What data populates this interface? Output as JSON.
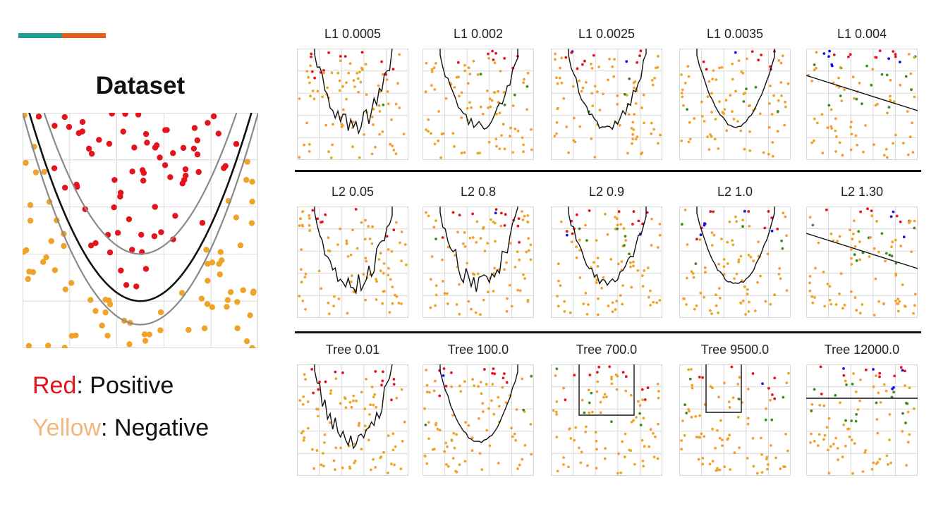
{
  "colors": {
    "accent_teal": "#1f9e8f",
    "accent_orange": "#e0601c",
    "positive": "#e3141c",
    "negative": "#f0a32a",
    "negative_label": "#f2b77a",
    "misclass_blue": "#1414e6",
    "misclass_green": "#3c8c1e",
    "boundary": "#111111",
    "margin": "#8a8a8a",
    "grid": "#d9d9d9"
  },
  "dataset": {
    "title": "Dataset",
    "legend": [
      {
        "color_word": "Red",
        "separator": ":",
        "meaning": " Positive"
      },
      {
        "color_word": "Yellow",
        "separator": ":",
        "meaning": " Negative"
      }
    ]
  },
  "chart_data": [
    {
      "type": "scatter",
      "title": "Dataset",
      "description": "Binary classes separated by a parabola",
      "legend": [
        "Red: Positive",
        "Yellow: Negative"
      ],
      "xlim": [
        -3,
        3
      ],
      "ylim": [
        0,
        10
      ],
      "boundary": {
        "kind": "parabola",
        "vertex_y": 2.0,
        "curvature": 1.0
      },
      "margins": [
        {
          "vertex_y": 4.0
        },
        {
          "vertex_y": 1.0
        }
      ]
    },
    {
      "type": "scatter",
      "grid_rows": [
        {
          "name": "L1",
          "panels": [
            {
              "title": "L1 0.0005",
              "boundary": "jagged",
              "misclassified": 0.02
            },
            {
              "title": "L1 0.002",
              "boundary": "wavy",
              "misclassified": 0.05
            },
            {
              "title": "L1 0.0025",
              "boundary": "wavy",
              "misclassified": 0.06
            },
            {
              "title": "L1 0.0035",
              "boundary": "smooth",
              "misclassified": 0.12
            },
            {
              "title": "L1 0.004",
              "boundary": "linear",
              "misclassified": 0.35
            }
          ]
        },
        {
          "name": "L2",
          "panels": [
            {
              "title": "L2 0.05",
              "boundary": "jagged",
              "misclassified": 0.0
            },
            {
              "title": "L2 0.8",
              "boundary": "jagged",
              "misclassified": 0.02
            },
            {
              "title": "L2 0.9",
              "boundary": "wavy",
              "misclassified": 0.06
            },
            {
              "title": "L2 1.0",
              "boundary": "smooth",
              "misclassified": 0.14
            },
            {
              "title": "L2 1.30",
              "boundary": "linear",
              "misclassified": 0.35
            }
          ]
        },
        {
          "name": "Tree",
          "panels": [
            {
              "title": "Tree 0.01",
              "boundary": "jagged",
              "misclassified": 0.0
            },
            {
              "title": "Tree 100.0",
              "boundary": "smooth",
              "misclassified": 0.08
            },
            {
              "title": "Tree 700.0",
              "boundary": "box",
              "misclassified": 0.14
            },
            {
              "title": "Tree 9500.0",
              "boundary": "box",
              "misclassified": 0.2
            },
            {
              "title": "Tree 12000.0",
              "boundary": "linear",
              "misclassified": 0.38
            }
          ]
        }
      ]
    }
  ]
}
